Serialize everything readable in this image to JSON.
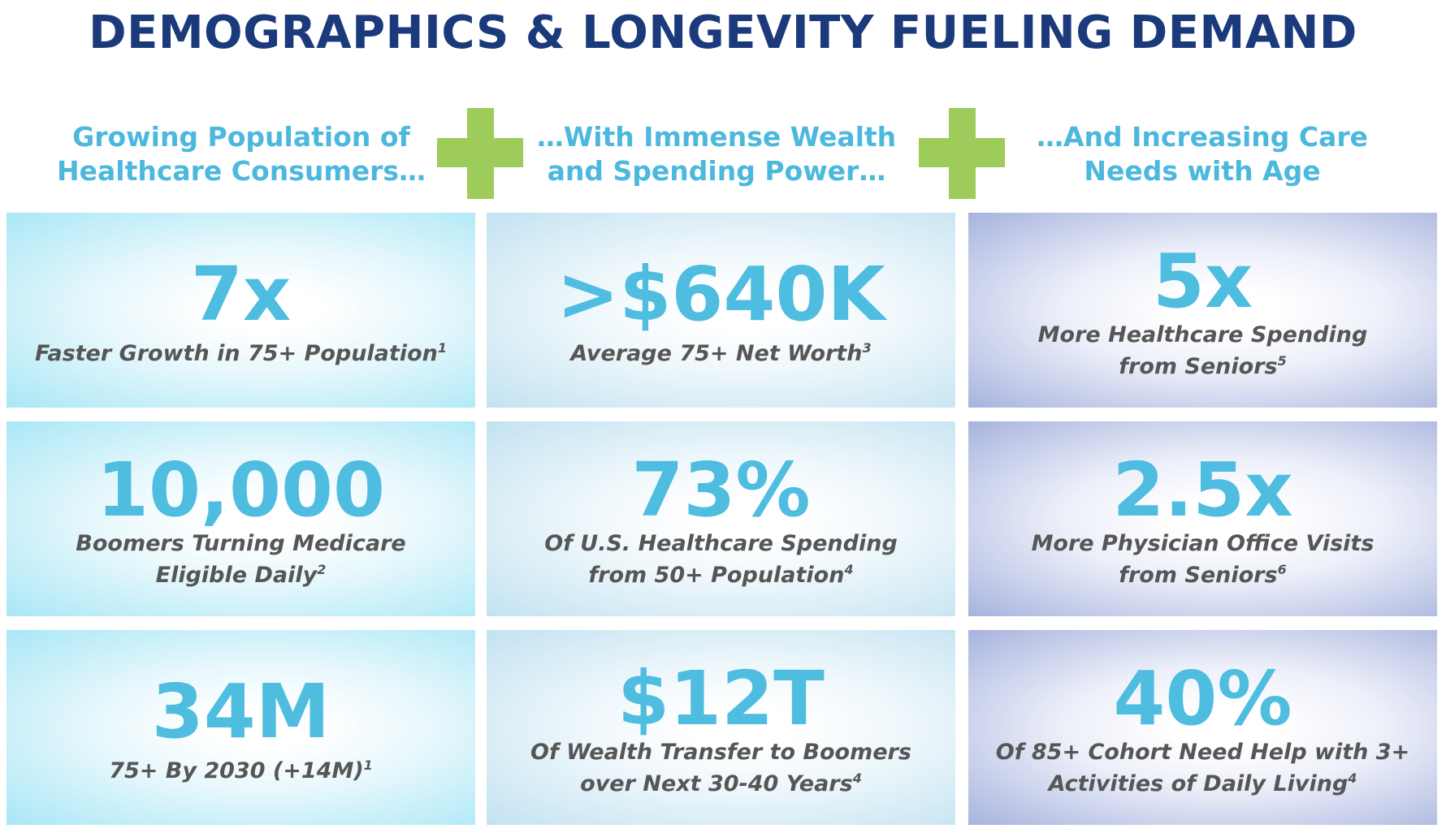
{
  "title": "DEMOGRAPHICS & LONGEVITY FUELING DEMAND",
  "columns": [
    {
      "header": [
        "Growing Population of",
        "Healthcare Consumers…"
      ],
      "tiles": [
        {
          "stat": "7x",
          "caption": [
            "Faster Growth in 75+ Population"
          ],
          "note": "1"
        },
        {
          "stat": "10,000",
          "caption": [
            "Boomers Turning Medicare",
            "Eligible Daily"
          ],
          "note": "2"
        },
        {
          "stat": "34M",
          "caption": [
            "75+ By 2030 (+14M)"
          ],
          "note": "1"
        }
      ]
    },
    {
      "header": [
        "…With Immense Wealth",
        "and Spending Power…"
      ],
      "tiles": [
        {
          "stat": ">$640K",
          "caption": [
            "Average 75+ Net Worth"
          ],
          "note": "3"
        },
        {
          "stat": "73%",
          "caption": [
            "Of U.S. Healthcare Spending",
            "from 50+ Population"
          ],
          "note": "4"
        },
        {
          "stat": "$12T",
          "caption": [
            "Of Wealth Transfer to Boomers",
            "over Next 30-40 Years"
          ],
          "note": "4"
        }
      ]
    },
    {
      "header": [
        "…And Increasing Care",
        "Needs with Age"
      ],
      "tiles": [
        {
          "stat": "5x",
          "caption": [
            "More Healthcare Spending",
            "from Seniors"
          ],
          "note": "5"
        },
        {
          "stat": "2.5x",
          "caption": [
            "More Physician Office Visits",
            "from Seniors"
          ],
          "note": "6"
        },
        {
          "stat": "40%",
          "caption": [
            "Of 85+ Cohort Need Help with 3+",
            "Activities of Daily Living"
          ],
          "note": "4"
        }
      ]
    }
  ]
}
